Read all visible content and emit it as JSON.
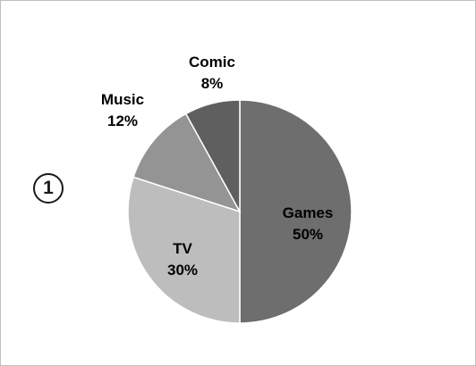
{
  "marker": "1",
  "chart_data": {
    "type": "pie",
    "title": "",
    "categories": [
      "Games",
      "TV",
      "Music",
      "Comic"
    ],
    "values": [
      50,
      30,
      12,
      8
    ],
    "value_labels": [
      "50%",
      "30%",
      "12%",
      "8%"
    ],
    "colors": [
      "#6e6e6e",
      "#bdbdbd",
      "#949494",
      "#5f5f5f"
    ],
    "label_colors": [
      "#000000",
      "#000000",
      "#000000",
      "#000000"
    ],
    "label_placement": [
      "inside",
      "inside",
      "outside",
      "outside"
    ],
    "start_angle": "12 o'clock",
    "direction": "clockwise"
  }
}
